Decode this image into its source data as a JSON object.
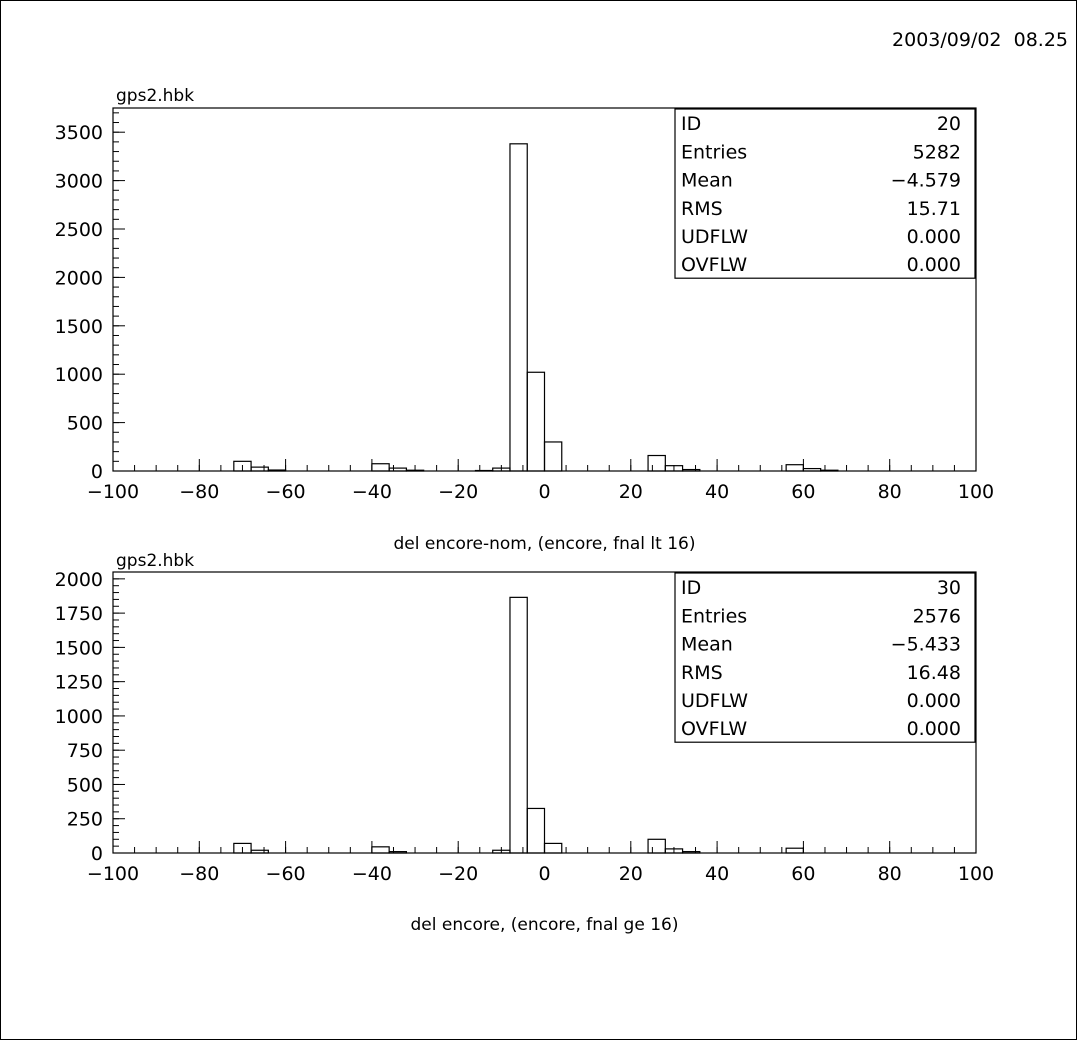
{
  "timestamp": "2003/09/02  08.25",
  "chart_data": [
    {
      "type": "bar",
      "title": "gps2.hbk",
      "xlabel": "del encore-nom, (encore, fnal lt 16)",
      "ylabel": "",
      "xlim": [
        -100,
        100
      ],
      "ylim": [
        0,
        3750
      ],
      "grid": false,
      "y_ticks": [
        0,
        500,
        1000,
        1500,
        2000,
        2500,
        3000,
        3500
      ],
      "y_tick_labels": [
        "0",
        "500",
        "1000",
        "1500",
        "2000",
        "2500",
        "3000",
        "3500"
      ],
      "y_minor_step": 100,
      "x_ticks": [
        -100,
        -80,
        -60,
        -40,
        -20,
        0,
        20,
        40,
        60,
        80,
        100
      ],
      "x_tick_labels": [
        "−100",
        "−80",
        "−60",
        "−40",
        "−20",
        "0",
        "20",
        "40",
        "60",
        "80",
        "100"
      ],
      "bin_width": 4,
      "bins": [
        {
          "x0": -72,
          "value": 100
        },
        {
          "x0": -68,
          "value": 40
        },
        {
          "x0": -64,
          "value": 10
        },
        {
          "x0": -40,
          "value": 75
        },
        {
          "x0": -36,
          "value": 30
        },
        {
          "x0": -32,
          "value": 8
        },
        {
          "x0": -16,
          "value": 5
        },
        {
          "x0": -12,
          "value": 30
        },
        {
          "x0": -8,
          "value": 3380
        },
        {
          "x0": -4,
          "value": 1020
        },
        {
          "x0": 0,
          "value": 300
        },
        {
          "x0": 24,
          "value": 160
        },
        {
          "x0": 28,
          "value": 55
        },
        {
          "x0": 32,
          "value": 15
        },
        {
          "x0": 56,
          "value": 65
        },
        {
          "x0": 60,
          "value": 25
        },
        {
          "x0": 64,
          "value": 8
        }
      ],
      "stats": [
        {
          "label": "ID",
          "value": "20"
        },
        {
          "label": "Entries",
          "value": "5282"
        },
        {
          "label": "Mean",
          "value": "−4.579"
        },
        {
          "label": "RMS",
          "value": "15.71"
        },
        {
          "label": "UDFLW",
          "value": "0.000"
        },
        {
          "label": "OVFLW",
          "value": "0.000"
        }
      ]
    },
    {
      "type": "bar",
      "title": "gps2.hbk",
      "xlabel": "del encore, (encore, fnal ge 16)",
      "ylabel": "",
      "xlim": [
        -100,
        100
      ],
      "ylim": [
        0,
        2050
      ],
      "grid": false,
      "y_ticks": [
        0,
        250,
        500,
        750,
        1000,
        1250,
        1500,
        1750,
        2000
      ],
      "y_tick_labels": [
        "0",
        "250",
        "500",
        "750",
        "1000",
        "1250",
        "1500",
        "1750",
        "2000"
      ],
      "y_minor_step": 50,
      "x_ticks": [
        -100,
        -80,
        -60,
        -40,
        -20,
        0,
        20,
        40,
        60,
        80,
        100
      ],
      "x_tick_labels": [
        "−100",
        "−80",
        "−60",
        "−40",
        "−20",
        "0",
        "20",
        "40",
        "60",
        "80",
        "100"
      ],
      "bin_width": 4,
      "bins": [
        {
          "x0": -72,
          "value": 70
        },
        {
          "x0": -68,
          "value": 20
        },
        {
          "x0": -40,
          "value": 45
        },
        {
          "x0": -36,
          "value": 10
        },
        {
          "x0": -12,
          "value": 20
        },
        {
          "x0": -8,
          "value": 1865
        },
        {
          "x0": -4,
          "value": 325
        },
        {
          "x0": 0,
          "value": 70
        },
        {
          "x0": 24,
          "value": 100
        },
        {
          "x0": 28,
          "value": 30
        },
        {
          "x0": 32,
          "value": 10
        },
        {
          "x0": 56,
          "value": 35
        }
      ],
      "stats": [
        {
          "label": "ID",
          "value": "30"
        },
        {
          "label": "Entries",
          "value": "2576"
        },
        {
          "label": "Mean",
          "value": "−5.433"
        },
        {
          "label": "RMS",
          "value": "16.48"
        },
        {
          "label": "UDFLW",
          "value": "0.000"
        },
        {
          "label": "OVFLW",
          "value": "0.000"
        }
      ]
    }
  ]
}
